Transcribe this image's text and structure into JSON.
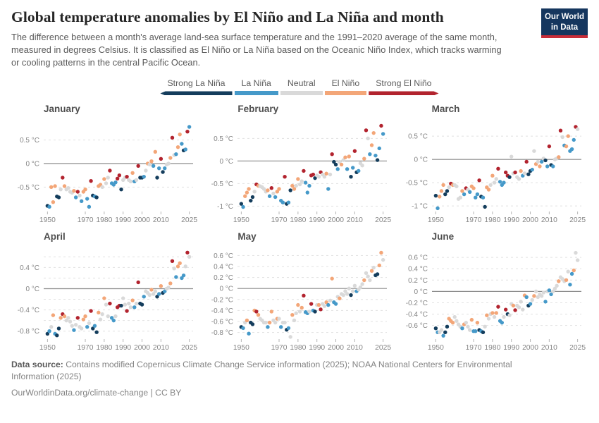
{
  "header": {
    "title": "Global temperature anomalies by El Niño and La Niña and month",
    "subtitle": "The difference between a month's average land-sea surface temperature and the 1991–2020 average of the same month, measured in degrees Celsius. It is classified as El Niño or La Niña based on the Oceanic Niño Index, which tracks warming or cooling patterns in the central Pacific Ocean.",
    "logo": {
      "line1": "Our World",
      "line2": "in Data"
    }
  },
  "colors": {
    "strong_la_nina": "#143d5c",
    "la_nina": "#4599c9",
    "neutral": "#d9d9d9",
    "el_nino": "#f3a678",
    "strong_el_nino": "#b2232e",
    "zero_line": "#8c8c8c",
    "grid_line": "#e1e1e1",
    "axis_text": "#858585"
  },
  "legend": {
    "items": [
      {
        "label": "Strong La Niña",
        "color_key": "strong_la_nina"
      },
      {
        "label": "La Niña",
        "color_key": "la_nina"
      },
      {
        "label": "Neutral",
        "color_key": "neutral"
      },
      {
        "label": "El Niño",
        "color_key": "el_nino"
      },
      {
        "label": "Strong El Niño",
        "color_key": "strong_el_nino"
      }
    ]
  },
  "class_codes": {
    "S": "Strong La Niña",
    "L": "La Niña",
    "N": "Neutral",
    "E": "El Niño",
    "R": "Strong El Niño"
  },
  "chart_data": {
    "type": "scatter",
    "x_start_year": 1950,
    "xlim": [
      1948,
      2027
    ],
    "xticks": [
      1950,
      1970,
      1980,
      1990,
      2000,
      2010,
      2025
    ],
    "unit": "°C",
    "charts": [
      {
        "title": "January",
        "ylim": [
          -1.02,
          0.9
        ],
        "grid": [
          0.5,
          -0.5
        ],
        "yticks": [
          {
            "v": 0.5,
            "label": "0.5 °C"
          },
          {
            "v": 0,
            "label": "0 °C"
          },
          {
            "v": -0.5,
            "label": "-0.5 °C"
          }
        ],
        "values": [
          -0.9,
          -0.92,
          -0.5,
          -0.82,
          -0.48,
          -0.7,
          -0.72,
          -0.55,
          -0.3,
          -0.48,
          -0.55,
          -0.52,
          -0.6,
          -0.62,
          -0.58,
          -0.72,
          -0.6,
          -0.68,
          -0.8,
          -0.6,
          -0.55,
          -0.75,
          -0.92,
          -0.37,
          -0.68,
          -0.7,
          -0.72,
          -0.48,
          -0.45,
          -0.5,
          -0.33,
          -0.42,
          -0.3,
          -0.15,
          -0.42,
          -0.45,
          -0.4,
          -0.32,
          -0.25,
          -0.55,
          -0.35,
          -0.3,
          -0.28,
          -0.35,
          -0.38,
          -0.2,
          -0.38,
          -0.35,
          -0.05,
          -0.3,
          -0.3,
          -0.28,
          -0.15,
          0,
          -0.02,
          0.05,
          -0.05,
          0.25,
          -0.3,
          -0.1,
          0.1,
          -0.18,
          -0.1,
          -0.02,
          0,
          0.12,
          0.55,
          0.18,
          0.2,
          0.35,
          0.62,
          0.42,
          0.28,
          0.3,
          0.68,
          0.78
        ],
        "classes": "SLEEESSNRENNNNELRNLEELLRSLSEENENNRLLLRRSNNRNNELNRSSLNENELESLRSLNNERNLEELSLRL"
      },
      {
        "title": "February",
        "ylim": [
          -1.12,
          0.88
        ],
        "grid": [
          0.5,
          -0.5,
          -1
        ],
        "yticks": [
          {
            "v": 0.5,
            "label": "0.5 °C"
          },
          {
            "v": 0,
            "label": "0 °C"
          },
          {
            "v": -0.5,
            "label": "-0.5 °C"
          },
          {
            "v": -1,
            "label": "-1 °C"
          }
        ],
        "values": [
          -0.95,
          -1.02,
          -0.78,
          -0.7,
          -0.62,
          -0.88,
          -0.8,
          -0.68,
          -0.52,
          -0.55,
          -0.56,
          -0.58,
          -0.62,
          -0.68,
          -0.65,
          -0.78,
          -0.6,
          -0.72,
          -0.8,
          -0.68,
          -0.62,
          -0.88,
          -0.92,
          -0.35,
          -0.95,
          -0.92,
          -0.65,
          -0.55,
          -0.62,
          -0.55,
          -0.4,
          -0.52,
          -0.45,
          -0.22,
          -0.48,
          -0.7,
          -0.55,
          -0.32,
          -0.3,
          -0.38,
          -0.32,
          -0.35,
          -0.25,
          -0.3,
          -0.35,
          -0.28,
          -0.62,
          -0.3,
          0.15,
          -0.02,
          -0.08,
          -0.18,
          -0.02,
          -0.08,
          0.02,
          0.08,
          -0.18,
          0.1,
          -0.35,
          -0.15,
          0.22,
          -0.25,
          -0.22,
          -0.05,
          -0.1,
          0.05,
          0.68,
          0.5,
          0.15,
          0.35,
          0.62,
          0.12,
          0.02,
          0.28,
          0.78,
          0.6
        ],
        "classes": "SLEEESSNRENNNNELRNLEELLRSLSEENENNRLLLRRSNNRNNELNRSSLNENELESLRSLNNERNLEELSLRL"
      },
      {
        "title": "March",
        "ylim": [
          -1.12,
          0.82
        ],
        "grid": [
          0.5,
          -0.5,
          -1
        ],
        "yticks": [
          {
            "v": 0.5,
            "label": "0.5 °C"
          },
          {
            "v": 0,
            "label": "0 °C"
          },
          {
            "v": -0.5,
            "label": "-0.5 °C"
          },
          {
            "v": -1,
            "label": "-1 °C"
          }
        ],
        "values": [
          -0.78,
          -1.05,
          -0.8,
          -0.68,
          -0.55,
          -0.75,
          -0.68,
          -0.6,
          -0.52,
          -0.55,
          -0.55,
          -0.58,
          -0.85,
          -0.82,
          -0.68,
          -0.75,
          -0.62,
          -0.65,
          -0.7,
          -0.58,
          -0.62,
          -0.82,
          -0.75,
          -0.45,
          -0.8,
          -0.82,
          -1.02,
          -0.6,
          -0.65,
          -0.55,
          -0.35,
          -0.5,
          -0.42,
          -0.2,
          -0.48,
          -0.55,
          -0.5,
          -0.28,
          -0.35,
          -0.38,
          0.06,
          -0.3,
          -0.28,
          -0.38,
          -0.42,
          -0.25,
          -0.35,
          -0.3,
          -0.05,
          -0.32,
          -0.25,
          -0.22,
          0.18,
          -0.1,
          -0.05,
          -0.15,
          -0.05,
          0.02,
          -0.02,
          -0.15,
          0.28,
          -0.12,
          -0.15,
          0,
          0.02,
          0.05,
          0.62,
          0.48,
          0.3,
          0.28,
          0.5,
          0.18,
          0.22,
          0.42,
          0.7,
          0.65
        ],
        "classes": "SLEEESSNRENNNNELRNLEELLRSLSEENENNRLLLRRSNNRNNELNRSSLNENELNSLRSLNNERNLEELLLRN"
      },
      {
        "title": "April",
        "ylim": [
          -0.95,
          0.75
        ],
        "grid": [
          0.6,
          0.4,
          0.2,
          -0.2,
          -0.4,
          -0.6,
          -0.8
        ],
        "yticks": [
          {
            "v": 0.4,
            "label": "0.4 °C"
          },
          {
            "v": 0,
            "label": "0 °C"
          },
          {
            "v": -0.4,
            "label": "-0.4 °C"
          },
          {
            "v": -0.8,
            "label": "-0.8 °C"
          }
        ],
        "values": [
          -0.85,
          -0.8,
          -0.72,
          -0.5,
          -0.85,
          -0.88,
          -0.75,
          -0.55,
          -0.48,
          -0.52,
          -0.6,
          -0.55,
          -0.62,
          -0.7,
          -0.78,
          -0.68,
          -0.55,
          -0.72,
          -0.75,
          -0.58,
          -0.52,
          -0.72,
          -0.65,
          -0.42,
          -0.75,
          -0.7,
          -0.82,
          -0.45,
          -0.58,
          -0.48,
          -0.18,
          -0.3,
          -0.52,
          -0.28,
          -0.55,
          -0.6,
          -0.52,
          -0.35,
          -0.32,
          -0.32,
          -0.18,
          -0.3,
          -0.42,
          -0.28,
          -0.35,
          -0.22,
          -0.35,
          -0.28,
          0.12,
          -0.28,
          -0.3,
          -0.15,
          -0.05,
          -0.08,
          -0.12,
          -0.02,
          -0.1,
          -0.05,
          -0.15,
          -0.1,
          0.05,
          -0.08,
          -0.05,
          0,
          0.02,
          0.1,
          0.52,
          0.38,
          0.22,
          0.42,
          0.48,
          0.2,
          0.25,
          0.42,
          0.68,
          0.6
        ],
        "classes": "SLNELSSERENNNNLNRNNEELNRSLSENNENNRLLNRRSNNRNNELNRSSLNNNENNSLESLNNERNLEELLNRN"
      },
      {
        "title": "May",
        "ylim": [
          -0.92,
          0.72
        ],
        "grid": [
          0.6,
          0.4,
          0.2,
          -0.2,
          -0.4,
          -0.6,
          -0.8
        ],
        "yticks": [
          {
            "v": 0.6,
            "label": "0.6 °C"
          },
          {
            "v": 0.4,
            "label": "0.4 °C"
          },
          {
            "v": 0.2,
            "label": "0.2 °C"
          },
          {
            "v": 0,
            "label": "0 °C"
          },
          {
            "v": -0.2,
            "label": "-0.2 °C"
          },
          {
            "v": -0.4,
            "label": "-0.4 °C"
          },
          {
            "v": -0.6,
            "label": "-0.6 °C"
          },
          {
            "v": -0.8,
            "label": "-0.8 °C"
          }
        ],
        "values": [
          -0.7,
          -0.72,
          -0.62,
          -0.58,
          -0.82,
          -0.62,
          -0.65,
          -0.4,
          -0.42,
          -0.48,
          -0.55,
          -0.58,
          -0.62,
          -0.62,
          -0.7,
          -0.62,
          -0.42,
          -0.58,
          -0.62,
          -0.55,
          -0.55,
          -0.7,
          -0.62,
          -0.62,
          -0.75,
          -0.72,
          -0.88,
          -0.48,
          -0.58,
          -0.45,
          -0.3,
          -0.42,
          -0.35,
          -0.13,
          -0.43,
          -0.45,
          -0.42,
          -0.28,
          -0.4,
          -0.42,
          -0.3,
          -0.3,
          -0.38,
          -0.28,
          -0.32,
          -0.25,
          -0.3,
          -0.22,
          0.18,
          -0.25,
          -0.28,
          -0.15,
          -0.18,
          -0.1,
          -0.12,
          -0.05,
          -0.1,
          0,
          -0.12,
          -0.05,
          0.05,
          -0.05,
          -0.02,
          0.02,
          0.08,
          0.15,
          0.28,
          0.22,
          0.15,
          0.32,
          0.38,
          0.24,
          0.26,
          0.42,
          0.65,
          0.52
        ],
        "classes": "SLNELSSERENNNNLEENNENLNNSLNENNENERLLNRLSNERNNELNELLNENNNNNSNNLNNNENNNENSSEEN"
      },
      {
        "title": "June",
        "ylim": [
          -0.84,
          0.75
        ],
        "grid": [
          0.6,
          0.4,
          0.2,
          -0.2,
          -0.4,
          -0.6
        ],
        "yticks": [
          {
            "v": 0.6,
            "label": "0.6 °C"
          },
          {
            "v": 0.4,
            "label": "0.4 °C"
          },
          {
            "v": 0.2,
            "label": "0.2 °C"
          },
          {
            "v": 0,
            "label": "0 °C"
          },
          {
            "v": -0.2,
            "label": "-0.2 °C"
          },
          {
            "v": -0.4,
            "label": "-0.4 °C"
          },
          {
            "v": -0.6,
            "label": "-0.6 °C"
          }
        ],
        "values": [
          -0.65,
          -0.72,
          -0.72,
          -0.68,
          -0.78,
          -0.72,
          -0.62,
          -0.48,
          -0.52,
          -0.55,
          -0.45,
          -0.52,
          -0.58,
          -0.62,
          -0.65,
          -0.58,
          -0.55,
          -0.62,
          -0.68,
          -0.5,
          -0.7,
          -0.7,
          -0.55,
          -0.68,
          -0.7,
          -0.72,
          -0.62,
          -0.42,
          -0.48,
          -0.4,
          -0.38,
          -0.45,
          -0.38,
          -0.27,
          -0.52,
          -0.55,
          -0.45,
          -0.32,
          -0.4,
          -0.42,
          -0.22,
          -0.25,
          -0.33,
          -0.25,
          -0.28,
          -0.18,
          -0.32,
          -0.07,
          -0.1,
          -0.25,
          -0.22,
          -0.15,
          -0.08,
          0,
          -0.1,
          -0.05,
          -0.08,
          -0.02,
          -0.18,
          0,
          0.02,
          -0.05,
          0,
          0.05,
          0.1,
          0.18,
          0.25,
          0.22,
          0.18,
          0.2,
          0.35,
          0.12,
          0.31,
          0.37,
          0.68,
          0.55
        ],
        "classes": "SLNNLSSEEENNNNLENNNELLESLSNENNENERLLNRSNNERNNNNELSLNENNNNNLNLLNNNENNNENLLENN"
      }
    ]
  },
  "footer": {
    "source_label": "Data source:",
    "source_text": " Contains modified Copernicus Climate Change Service information (2025); NOAA National Centers for Environmental Information (2025)",
    "link": "OurWorldinData.org/climate-change",
    "separator": " | ",
    "license": "CC BY"
  }
}
